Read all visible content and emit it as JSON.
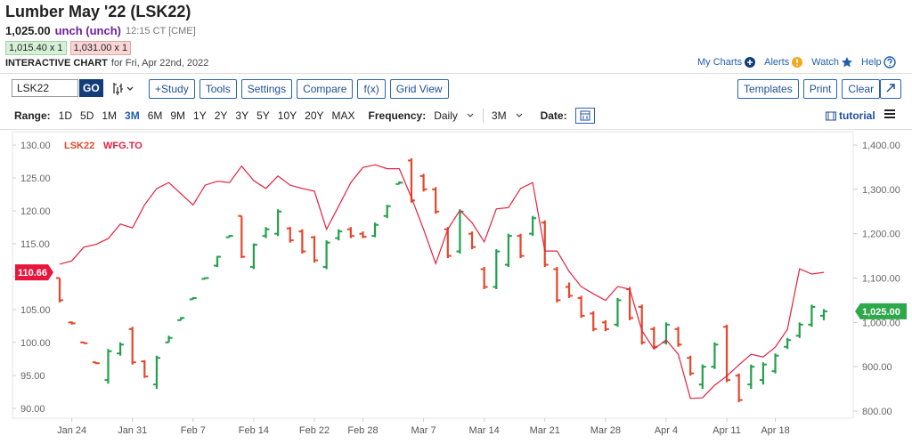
{
  "header": {
    "title": "Lumber May '22 (LSK22)",
    "price": "1,025.00",
    "change": "unch (unch)",
    "time": "12:15 CT [CME]",
    "bid": "1,015.40 x 1",
    "ask": "1,031.00 x 1",
    "chart_label": "INTERACTIVE CHART",
    "date_text": "for Fri, Apr 22nd, 2022"
  },
  "links": [
    "My Charts",
    "Alerts",
    "Watch",
    "Help"
  ],
  "toolbar": {
    "symbol": "LSK22",
    "go": "GO",
    "buttons": [
      "+Study",
      "Tools",
      "Settings",
      "Compare",
      "f(x)",
      "Grid View"
    ],
    "right_buttons": [
      "Templates",
      "Print",
      "Clear"
    ]
  },
  "range_bar": {
    "range_label": "Range:",
    "ranges": [
      "1D",
      "5D",
      "1M",
      "3M",
      "6M",
      "9M",
      "1Y",
      "2Y",
      "3Y",
      "5Y",
      "10Y",
      "20Y",
      "MAX"
    ],
    "selected_range": 3,
    "frequency_label": "Frequency:",
    "frequency": "Daily",
    "period": "3M",
    "date_label": "Date:",
    "tutorial": "tutorial"
  },
  "chart_data": {
    "type": "ohlc",
    "categories": [
      null,
      "Jan 24",
      null,
      null,
      null,
      null,
      "Jan 31",
      null,
      null,
      null,
      null,
      "Feb 7",
      null,
      null,
      null,
      null,
      "Feb 14",
      null,
      null,
      null,
      null,
      "Feb 22",
      null,
      null,
      null,
      "Feb 28",
      null,
      null,
      null,
      null,
      "Mar 7",
      null,
      null,
      null,
      null,
      "Mar 14",
      null,
      null,
      null,
      null,
      "Mar 21",
      null,
      null,
      null,
      null,
      "Mar 28",
      null,
      null,
      null,
      null,
      "Apr 4",
      null,
      null,
      null,
      null,
      "Apr 11",
      null,
      null,
      null,
      "Apr 18",
      null,
      null,
      null,
      null
    ],
    "ylim": [
      88.5,
      131.76
    ],
    "yticks": [
      {
        "value": 90,
        "label": "90.00"
      },
      {
        "value": 95,
        "label": "95.00"
      },
      {
        "value": 100,
        "label": "100.00"
      },
      {
        "value": 105,
        "label": "105.00"
      },
      {
        "value": 110,
        "label": "110.00"
      },
      {
        "value": 115,
        "label": "115.00"
      },
      {
        "value": 120,
        "label": "120.00"
      },
      {
        "value": 125,
        "label": "125.00"
      },
      {
        "value": 130,
        "label": "130.00"
      }
    ],
    "y2lim": [
      784,
      1426
    ],
    "y2ticks": [
      {
        "value": 800,
        "label": "800.00"
      },
      {
        "value": 900,
        "label": "900.00"
      },
      {
        "value": 1000,
        "label": "1,000.00"
      },
      {
        "value": 1100,
        "label": "1,100.00"
      },
      {
        "value": 1200,
        "label": "1,200.00"
      },
      {
        "value": 1300,
        "label": "1,300.00"
      },
      {
        "value": 1400,
        "label": "1,400.00"
      }
    ],
    "series": [
      {
        "name": "LSK22",
        "type": "ohlc",
        "axis": "y2",
        "up_color": "#22a04b",
        "down_color": "#e5472b",
        "label_color": "#2da84a",
        "open": [
          1100,
          1000,
          955,
          910,
          870,
          930,
          985,
          912,
          860,
          955,
          1005,
          1052,
          1098,
          1128,
          1192,
          1240,
          1125,
          1195,
          1200,
          1212,
          1205,
          1192,
          1125,
          1190,
          1210,
          1200,
          1195,
          1240,
          1312,
          1365,
          1330,
          1300,
          1210,
          1160,
          1200,
          1120,
          1080,
          1130,
          1195,
          1200,
          1225,
          1120,
          1080,
          1055,
          1020,
          1000,
          995,
          1075,
          1035,
          985,
          955,
          985,
          920,
          860,
          900,
          990,
          880,
          860,
          870,
          890,
          945,
          970,
          995,
          1015
        ],
        "high": [
          1100,
          1002,
          956,
          910,
          940,
          955,
          990,
          915,
          925,
          970,
          1012,
          1057,
          1102,
          1150,
          1197,
          1240,
          1178,
          1215,
          1255,
          1215,
          1210,
          1195,
          1185,
          1210,
          1215,
          1205,
          1225,
          1265,
          1318,
          1370,
          1335,
          1305,
          1215,
          1255,
          1205,
          1125,
          1165,
          1200,
          1200,
          1240,
          1230,
          1125,
          1090,
          1060,
          1025,
          1005,
          1055,
          1080,
          1040,
          990,
          1000,
          990,
          925,
          905,
          955,
          995,
          885,
          905,
          910,
          930,
          965,
          1000,
          1040,
          1030
        ],
        "low": [
          1045,
          995,
          952,
          906,
          862,
          925,
          905,
          875,
          850,
          955,
          1005,
          1052,
          1098,
          1125,
          1192,
          1145,
          1120,
          1190,
          1195,
          1180,
          1155,
          1135,
          1120,
          1185,
          1190,
          1190,
          1192,
          1235,
          1312,
          1270,
          1295,
          1245,
          1145,
          1155,
          1165,
          1075,
          1075,
          1125,
          1145,
          1195,
          1125,
          1045,
          1055,
          1010,
          980,
          980,
          990,
          1005,
          950,
          940,
          950,
          945,
          880,
          850,
          895,
          865,
          820,
          850,
          860,
          885,
          940,
          965,
          990,
          1005
        ],
        "close": [
          1050,
          998,
          953,
          908,
          935,
          950,
          910,
          878,
          920,
          965,
          1010,
          1055,
          1100,
          1148,
          1195,
          1148,
          1175,
          1210,
          1250,
          1185,
          1160,
          1140,
          1180,
          1205,
          1195,
          1193,
          1220,
          1262,
          1315,
          1275,
          1300,
          1250,
          1150,
          1250,
          1170,
          1080,
          1160,
          1195,
          1150,
          1235,
          1130,
          1050,
          1060,
          1015,
          985,
          985,
          1050,
          1010,
          955,
          945,
          995,
          950,
          885,
          900,
          950,
          870,
          825,
          900,
          905,
          925,
          960,
          995,
          1035,
          1025
        ],
        "value_labels": [
          null,
          null,
          null,
          null,
          null,
          null,
          null,
          null,
          null,
          null,
          null,
          null,
          null,
          null,
          null,
          null,
          null,
          null,
          null,
          null,
          null,
          null,
          null,
          null,
          null,
          null,
          null,
          null,
          null,
          null,
          null,
          null,
          null,
          null,
          null,
          null,
          null,
          null,
          null,
          null,
          null,
          null,
          null,
          null,
          null,
          null,
          null,
          null,
          null,
          null,
          null,
          null,
          null,
          null,
          null,
          null,
          null,
          null,
          null,
          null,
          null,
          null,
          null,
          "1,025.00"
        ]
      },
      {
        "name": "WFG.TO",
        "type": "line",
        "axis": "y",
        "color": "#e5203f",
        "label_color": "#e8163c",
        "values": [
          111.9,
          112.4,
          114.5,
          114.9,
          115.8,
          118,
          117.4,
          120.9,
          123.4,
          124.3,
          122.6,
          120.9,
          123.9,
          124.5,
          124.3,
          126.8,
          124.6,
          123.4,
          125.3,
          123.9,
          123.4,
          123,
          117.2,
          120.7,
          124.3,
          126.6,
          127,
          126.4,
          126.4,
          122,
          117.2,
          112,
          117.2,
          120.1,
          118.2,
          115.3,
          120.3,
          120.5,
          123.4,
          124.3,
          113.9,
          113.9,
          110.8,
          108.5,
          107.4,
          106.4,
          108.5,
          108.1,
          101.8,
          99,
          100.4,
          98.2,
          91.5,
          91.6,
          93.5,
          94.9,
          96.6,
          98.2,
          97.8,
          99.3,
          102,
          111.2,
          110.4,
          110.66
        ],
        "value_labels": [
          null,
          null,
          null,
          null,
          null,
          null,
          null,
          null,
          null,
          null,
          null,
          null,
          null,
          null,
          null,
          null,
          null,
          null,
          null,
          null,
          null,
          null,
          null,
          null,
          null,
          null,
          null,
          null,
          null,
          null,
          null,
          null,
          null,
          null,
          null,
          null,
          null,
          null,
          null,
          null,
          null,
          null,
          null,
          null,
          null,
          null,
          null,
          null,
          null,
          null,
          null,
          null,
          null,
          null,
          null,
          null,
          null,
          null,
          null,
          null,
          null,
          null,
          null,
          "110.66"
        ]
      }
    ]
  }
}
